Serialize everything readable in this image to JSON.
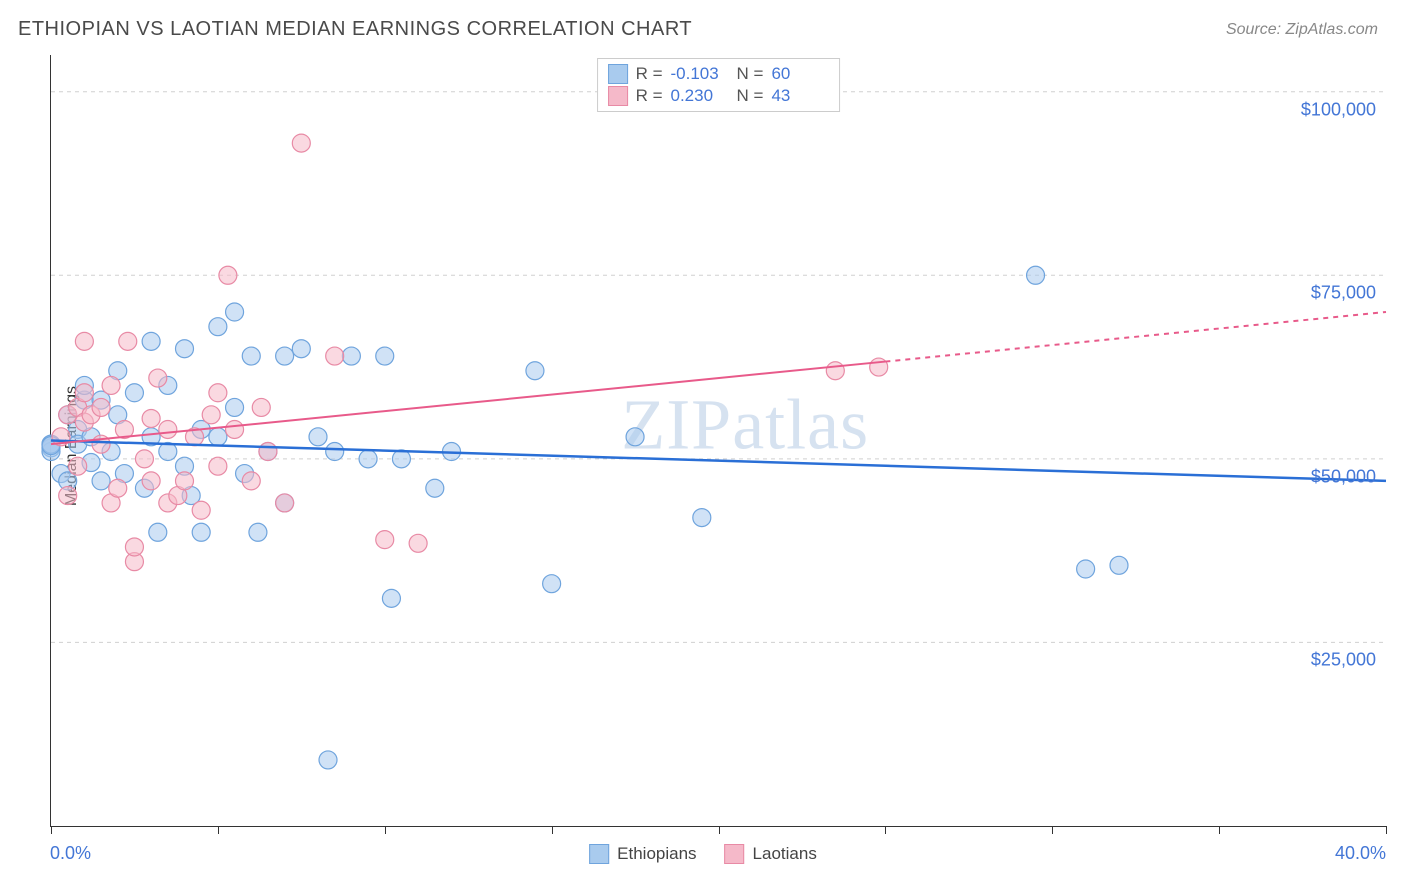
{
  "title": "ETHIOPIAN VS LAOTIAN MEDIAN EARNINGS CORRELATION CHART",
  "source": "Source: ZipAtlas.com",
  "ylabel": "Median Earnings",
  "watermark": "ZIPatlas",
  "chart": {
    "type": "scatter",
    "xlim": [
      0,
      40
    ],
    "ylim": [
      0,
      105000
    ],
    "x_tick_positions": [
      0,
      5,
      10,
      15,
      20,
      25,
      30,
      35,
      40
    ],
    "x_label_min": "0.0%",
    "x_label_max": "40.0%",
    "y_gridlines": [
      25000,
      50000,
      75000,
      100000
    ],
    "y_tick_labels": [
      "$25,000",
      "$50,000",
      "$75,000",
      "$100,000"
    ],
    "grid_color": "#d0d0d0",
    "background_color": "#ffffff",
    "axis_color": "#333333",
    "label_color": "#4376d6",
    "series": [
      {
        "name": "Ethiopians",
        "fill": "#a9cbee",
        "stroke": "#6fa4dd",
        "marker_radius": 9,
        "fill_opacity": 0.55,
        "R": "-0.103",
        "N": "60",
        "trend": {
          "y_at_x0": 52500,
          "y_at_x40": 47000,
          "color": "#2a6fd6",
          "width": 2.5,
          "dash_from_x": null
        },
        "points": [
          [
            0.0,
            51500
          ],
          [
            0.0,
            51000
          ],
          [
            0.0,
            52000
          ],
          [
            0.0,
            52000
          ],
          [
            0.0,
            51800
          ],
          [
            0.3,
            48000
          ],
          [
            0.5,
            56000
          ],
          [
            0.5,
            47000
          ],
          [
            0.8,
            54000
          ],
          [
            0.8,
            52000
          ],
          [
            1.0,
            58000
          ],
          [
            1.0,
            60000
          ],
          [
            1.2,
            53000
          ],
          [
            1.2,
            49500
          ],
          [
            1.5,
            47000
          ],
          [
            1.5,
            58000
          ],
          [
            1.8,
            51000
          ],
          [
            2.0,
            62000
          ],
          [
            2.0,
            56000
          ],
          [
            2.2,
            48000
          ],
          [
            2.5,
            59000
          ],
          [
            2.8,
            46000
          ],
          [
            3.0,
            66000
          ],
          [
            3.0,
            53000
          ],
          [
            3.2,
            40000
          ],
          [
            3.5,
            51000
          ],
          [
            3.5,
            60000
          ],
          [
            4.0,
            65000
          ],
          [
            4.0,
            49000
          ],
          [
            4.2,
            45000
          ],
          [
            4.5,
            54000
          ],
          [
            4.5,
            40000
          ],
          [
            5.0,
            68000
          ],
          [
            5.0,
            53000
          ],
          [
            5.5,
            57000
          ],
          [
            5.5,
            70000
          ],
          [
            5.8,
            48000
          ],
          [
            6.0,
            64000
          ],
          [
            6.2,
            40000
          ],
          [
            6.5,
            51000
          ],
          [
            7.0,
            64000
          ],
          [
            7.0,
            44000
          ],
          [
            7.5,
            65000
          ],
          [
            8.0,
            53000
          ],
          [
            8.3,
            9000
          ],
          [
            8.5,
            51000
          ],
          [
            9.0,
            64000
          ],
          [
            9.5,
            50000
          ],
          [
            10.0,
            64000
          ],
          [
            10.2,
            31000
          ],
          [
            10.5,
            50000
          ],
          [
            11.5,
            46000
          ],
          [
            12.0,
            51000
          ],
          [
            14.5,
            62000
          ],
          [
            15.0,
            33000
          ],
          [
            17.5,
            53000
          ],
          [
            19.5,
            42000
          ],
          [
            29.5,
            75000
          ],
          [
            31.0,
            35000
          ],
          [
            32.0,
            35500
          ]
        ]
      },
      {
        "name": "Laotians",
        "fill": "#f5b9c9",
        "stroke": "#e88aa5",
        "marker_radius": 9,
        "fill_opacity": 0.55,
        "R": "0.230",
        "N": "43",
        "trend": {
          "y_at_x0": 52000,
          "y_at_x40": 70000,
          "color": "#e85a8a",
          "width": 2,
          "dash_from_x": 25
        },
        "points": [
          [
            0.3,
            53000
          ],
          [
            0.5,
            56000
          ],
          [
            0.5,
            45000
          ],
          [
            0.8,
            57000
          ],
          [
            0.8,
            49000
          ],
          [
            1.0,
            55000
          ],
          [
            1.0,
            59000
          ],
          [
            1.0,
            66000
          ],
          [
            1.2,
            56000
          ],
          [
            1.5,
            52000
          ],
          [
            1.5,
            57000
          ],
          [
            1.8,
            44000
          ],
          [
            1.8,
            60000
          ],
          [
            2.0,
            46000
          ],
          [
            2.2,
            54000
          ],
          [
            2.3,
            66000
          ],
          [
            2.5,
            36000
          ],
          [
            2.5,
            38000
          ],
          [
            2.8,
            50000
          ],
          [
            3.0,
            55500
          ],
          [
            3.0,
            47000
          ],
          [
            3.2,
            61000
          ],
          [
            3.5,
            44000
          ],
          [
            3.5,
            54000
          ],
          [
            3.8,
            45000
          ],
          [
            4.0,
            47000
          ],
          [
            4.3,
            53000
          ],
          [
            4.5,
            43000
          ],
          [
            4.8,
            56000
          ],
          [
            5.0,
            59000
          ],
          [
            5.0,
            49000
          ],
          [
            5.3,
            75000
          ],
          [
            5.5,
            54000
          ],
          [
            6.0,
            47000
          ],
          [
            6.3,
            57000
          ],
          [
            6.5,
            51000
          ],
          [
            7.0,
            44000
          ],
          [
            7.5,
            93000
          ],
          [
            8.5,
            64000
          ],
          [
            10.0,
            39000
          ],
          [
            11.0,
            38500
          ],
          [
            23.5,
            62000
          ],
          [
            24.8,
            62500
          ]
        ]
      }
    ]
  },
  "bottom_legend": [
    {
      "label": "Ethiopians",
      "fill": "#a9cbee",
      "stroke": "#6fa4dd"
    },
    {
      "label": "Laotians",
      "fill": "#f5b9c9",
      "stroke": "#e88aa5"
    }
  ],
  "top_legend": {
    "rows": [
      {
        "swatch_fill": "#a9cbee",
        "swatch_stroke": "#6fa4dd",
        "R_label": "R =",
        "R": "-0.103",
        "N_label": "N =",
        "N": "60"
      },
      {
        "swatch_fill": "#f5b9c9",
        "swatch_stroke": "#e88aa5",
        "R_label": "R =",
        "R": "0.230",
        "N_label": "N =",
        "N": "43"
      }
    ]
  }
}
